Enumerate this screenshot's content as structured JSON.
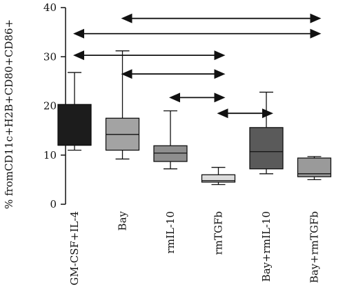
{
  "chart_data": {
    "type": "box",
    "ylabel": "% fromCD11c+H2B+CD80+CD86+",
    "ylim": [
      0,
      40
    ],
    "yticks": [
      0,
      10,
      20,
      30,
      40
    ],
    "categories": [
      "GM-CSF+IL-4",
      "Bay",
      "rmIL-10",
      "rmTGFb",
      "Bay+rmIL-10",
      "Bay+rmTGFb"
    ],
    "boxes": [
      {
        "category": "GM-CSF+IL-4",
        "min": 11.0,
        "q1": 12.0,
        "median": 12.0,
        "q3": 20.3,
        "max": 26.8,
        "color": "#1c1c1c"
      },
      {
        "category": "Bay",
        "min": 9.2,
        "q1": 11.0,
        "median": 14.2,
        "q3": 17.5,
        "max": 31.2,
        "color": "#a3a3a3"
      },
      {
        "category": "rmIL-10",
        "min": 7.2,
        "q1": 8.7,
        "median": 10.4,
        "q3": 11.9,
        "max": 19.0,
        "color": "#8e8e8e"
      },
      {
        "category": "rmTGFb",
        "min": 4.0,
        "q1": 4.5,
        "median": 4.8,
        "q3": 6.0,
        "max": 7.5,
        "color": "#dcdcdc"
      },
      {
        "category": "Bay+rmIL-10",
        "min": 6.2,
        "q1": 7.2,
        "median": 10.7,
        "q3": 15.6,
        "max": 22.8,
        "color": "#5a5a5a"
      },
      {
        "category": "Bay+rmTGFb",
        "min": 5.0,
        "q1": 5.6,
        "median": 6.2,
        "q3": 9.4,
        "max": 9.7,
        "color": "#9a9a9a"
      }
    ],
    "comparisons": [
      {
        "from": "Bay",
        "to": "Bay+rmTGFb",
        "y": 37.8
      },
      {
        "from": "GM-CSF+IL-4",
        "to": "Bay+rmTGFb",
        "y": 34.7
      },
      {
        "from": "GM-CSF+IL-4",
        "to": "rmTGFb",
        "y": 30.3
      },
      {
        "from": "Bay",
        "to": "rmTGFb",
        "y": 26.5
      },
      {
        "from": "rmIL-10",
        "to": "rmTGFb",
        "y": 21.7
      },
      {
        "from": "rmTGFb",
        "to": "Bay+rmIL-10",
        "y": 18.5
      }
    ]
  }
}
